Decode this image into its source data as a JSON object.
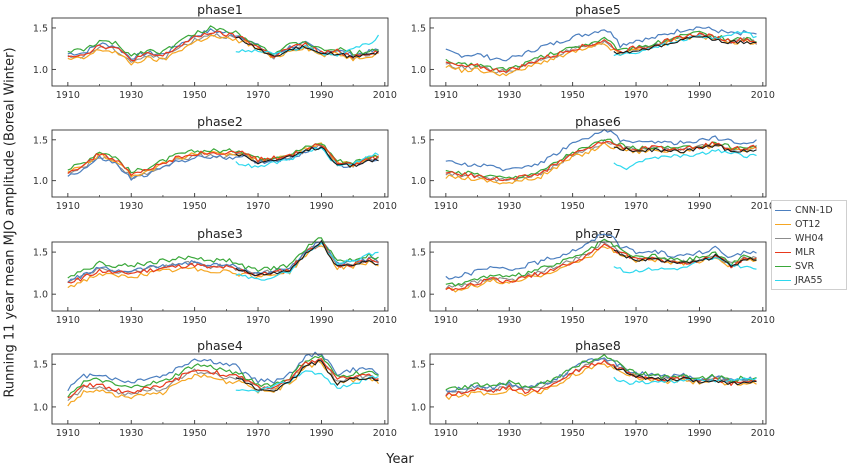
{
  "figure": {
    "ylabel": "Running 11 year mean MJO amplitude (Boreal Winter)",
    "xlabel": "Year"
  },
  "legend": [
    {
      "label": "CNN-1D",
      "color": "#4c7fbf"
    },
    {
      "label": "OT12",
      "color": "#f5a623"
    },
    {
      "label": "WH04",
      "color": "#8c8c8c"
    },
    {
      "label": "MLR",
      "color": "#e8391d"
    },
    {
      "label": "SVR",
      "color": "#3aa83a"
    },
    {
      "label": "JRA55",
      "color": "#2ed8ee"
    }
  ],
  "chart_data": [
    {
      "type": "line",
      "title": "phase1",
      "xlim": [
        1905,
        2011
      ],
      "ylim": [
        0.8,
        1.62
      ],
      "xticks": [
        1910,
        1930,
        1950,
        1970,
        1990,
        2010
      ],
      "yticks": [
        1.0,
        1.5
      ],
      "base": [
        [
          1910,
          1.17
        ],
        [
          1915,
          1.18
        ],
        [
          1920,
          1.29
        ],
        [
          1925,
          1.26
        ],
        [
          1930,
          1.12
        ],
        [
          1935,
          1.18
        ],
        [
          1940,
          1.16
        ],
        [
          1945,
          1.28
        ],
        [
          1950,
          1.38
        ],
        [
          1955,
          1.45
        ],
        [
          1960,
          1.42
        ],
        [
          1965,
          1.38
        ],
        [
          1970,
          1.27
        ],
        [
          1975,
          1.16
        ],
        [
          1980,
          1.26
        ],
        [
          1985,
          1.3
        ],
        [
          1990,
          1.2
        ],
        [
          1995,
          1.22
        ],
        [
          2000,
          1.16
        ],
        [
          2005,
          1.2
        ],
        [
          2008,
          1.22
        ]
      ],
      "offsets": {
        "CNN-1D": 0.02,
        "OT12": -0.05,
        "WH04": -0.02,
        "MLR": 0.0,
        "SVR": 0.05
      },
      "jra": [
        [
          1963,
          1.22
        ],
        [
          1970,
          1.22
        ],
        [
          1975,
          1.19
        ],
        [
          1980,
          1.22
        ],
        [
          1985,
          1.28
        ],
        [
          1990,
          1.19
        ],
        [
          1995,
          1.17
        ],
        [
          2000,
          1.27
        ],
        [
          2005,
          1.3
        ],
        [
          2008,
          1.4
        ]
      ]
    },
    {
      "type": "line",
      "title": "phase2",
      "xlim": [
        1905,
        2011
      ],
      "ylim": [
        0.8,
        1.62
      ],
      "xticks": [
        1910,
        1930,
        1950,
        1970,
        1990,
        2010
      ],
      "yticks": [
        1.0,
        1.5
      ],
      "base": [
        [
          1910,
          1.1
        ],
        [
          1915,
          1.18
        ],
        [
          1920,
          1.32
        ],
        [
          1925,
          1.25
        ],
        [
          1930,
          1.06
        ],
        [
          1935,
          1.12
        ],
        [
          1940,
          1.2
        ],
        [
          1945,
          1.28
        ],
        [
          1950,
          1.32
        ],
        [
          1955,
          1.33
        ],
        [
          1960,
          1.32
        ],
        [
          1965,
          1.34
        ],
        [
          1970,
          1.25
        ],
        [
          1975,
          1.27
        ],
        [
          1980,
          1.3
        ],
        [
          1985,
          1.38
        ],
        [
          1990,
          1.44
        ],
        [
          1995,
          1.22
        ],
        [
          2000,
          1.2
        ],
        [
          2005,
          1.27
        ],
        [
          2008,
          1.28
        ]
      ],
      "offsets": {
        "CNN-1D": -0.04,
        "OT12": 0.0,
        "WH04": -0.02,
        "MLR": 0.01,
        "SVR": 0.04
      },
      "jra": [
        [
          1963,
          1.22
        ],
        [
          1970,
          1.16
        ],
        [
          1975,
          1.22
        ],
        [
          1980,
          1.25
        ],
        [
          1985,
          1.37
        ],
        [
          1990,
          1.39
        ],
        [
          1995,
          1.18
        ],
        [
          2000,
          1.21
        ],
        [
          2005,
          1.31
        ],
        [
          2008,
          1.33
        ]
      ]
    },
    {
      "type": "line",
      "title": "phase3",
      "xlim": [
        1905,
        2011
      ],
      "ylim": [
        0.8,
        1.62
      ],
      "xticks": [
        1910,
        1930,
        1950,
        1970,
        1990,
        2010
      ],
      "yticks": [
        1.0,
        1.5
      ],
      "base": [
        [
          1910,
          1.14
        ],
        [
          1915,
          1.22
        ],
        [
          1920,
          1.3
        ],
        [
          1925,
          1.27
        ],
        [
          1930,
          1.27
        ],
        [
          1935,
          1.3
        ],
        [
          1940,
          1.33
        ],
        [
          1945,
          1.35
        ],
        [
          1950,
          1.37
        ],
        [
          1955,
          1.33
        ],
        [
          1960,
          1.34
        ],
        [
          1965,
          1.29
        ],
        [
          1970,
          1.24
        ],
        [
          1975,
          1.27
        ],
        [
          1980,
          1.3
        ],
        [
          1985,
          1.5
        ],
        [
          1990,
          1.63
        ],
        [
          1995,
          1.35
        ],
        [
          2000,
          1.37
        ],
        [
          2005,
          1.42
        ],
        [
          2008,
          1.38
        ]
      ],
      "offsets": {
        "CNN-1D": 0.01,
        "OT12": -0.06,
        "WH04": 0.0,
        "MLR": -0.02,
        "SVR": 0.07
      },
      "jra": [
        [
          1963,
          1.23
        ],
        [
          1970,
          1.17
        ],
        [
          1975,
          1.21
        ],
        [
          1980,
          1.27
        ],
        [
          1985,
          1.48
        ],
        [
          1990,
          1.6
        ],
        [
          1995,
          1.37
        ],
        [
          2000,
          1.4
        ],
        [
          2005,
          1.47
        ],
        [
          2008,
          1.5
        ]
      ]
    },
    {
      "type": "line",
      "title": "phase4",
      "xlim": [
        1905,
        2011
      ],
      "ylim": [
        0.8,
        1.62
      ],
      "xticks": [
        1910,
        1930,
        1950,
        1970,
        1990,
        2010
      ],
      "yticks": [
        1.0,
        1.5
      ],
      "base": [
        [
          1910,
          1.07
        ],
        [
          1915,
          1.22
        ],
        [
          1920,
          1.25
        ],
        [
          1925,
          1.18
        ],
        [
          1930,
          1.15
        ],
        [
          1935,
          1.2
        ],
        [
          1940,
          1.22
        ],
        [
          1945,
          1.32
        ],
        [
          1950,
          1.42
        ],
        [
          1955,
          1.4
        ],
        [
          1960,
          1.35
        ],
        [
          1965,
          1.33
        ],
        [
          1970,
          1.22
        ],
        [
          1975,
          1.22
        ],
        [
          1980,
          1.3
        ],
        [
          1985,
          1.5
        ],
        [
          1990,
          1.55
        ],
        [
          1995,
          1.3
        ],
        [
          2000,
          1.35
        ],
        [
          2005,
          1.36
        ],
        [
          2008,
          1.32
        ]
      ],
      "offsets": {
        "CNN-1D": 0.14,
        "OT12": -0.05,
        "WH04": 0.0,
        "MLR": 0.02,
        "SVR": 0.07
      },
      "jra": [
        [
          1963,
          1.18
        ],
        [
          1970,
          1.19
        ],
        [
          1975,
          1.24
        ],
        [
          1980,
          1.3
        ],
        [
          1985,
          1.43
        ],
        [
          1990,
          1.38
        ],
        [
          1995,
          1.22
        ],
        [
          2000,
          1.27
        ],
        [
          2005,
          1.34
        ],
        [
          2008,
          1.35
        ]
      ]
    },
    {
      "type": "line",
      "title": "phase5",
      "xlim": [
        1905,
        2011
      ],
      "ylim": [
        0.8,
        1.62
      ],
      "xticks": [
        1910,
        1930,
        1950,
        1970,
        1990,
        2010
      ],
      "yticks": [
        1.0,
        1.5
      ],
      "base": [
        [
          1910,
          1.07
        ],
        [
          1915,
          1.02
        ],
        [
          1920,
          1.03
        ],
        [
          1925,
          0.98
        ],
        [
          1930,
          0.98
        ],
        [
          1935,
          1.04
        ],
        [
          1940,
          1.12
        ],
        [
          1945,
          1.17
        ],
        [
          1950,
          1.24
        ],
        [
          1955,
          1.28
        ],
        [
          1960,
          1.34
        ],
        [
          1965,
          1.2
        ],
        [
          1970,
          1.26
        ],
        [
          1975,
          1.28
        ],
        [
          1980,
          1.34
        ],
        [
          1985,
          1.39
        ],
        [
          1990,
          1.42
        ],
        [
          1995,
          1.38
        ],
        [
          2000,
          1.34
        ],
        [
          2005,
          1.36
        ],
        [
          2008,
          1.32
        ]
      ],
      "offsets": {
        "CNN-1D": 0.15,
        "OT12": -0.03,
        "WH04": 0.0,
        "MLR": 0.01,
        "SVR": 0.03
      },
      "jra": [
        [
          1963,
          1.17
        ],
        [
          1970,
          1.2
        ],
        [
          1975,
          1.27
        ],
        [
          1980,
          1.3
        ],
        [
          1985,
          1.36
        ],
        [
          1990,
          1.4
        ],
        [
          1995,
          1.37
        ],
        [
          2000,
          1.43
        ],
        [
          2005,
          1.45
        ],
        [
          2008,
          1.38
        ]
      ]
    },
    {
      "type": "line",
      "title": "phase6",
      "xlim": [
        1905,
        2011
      ],
      "ylim": [
        0.8,
        1.62
      ],
      "xticks": [
        1910,
        1930,
        1950,
        1970,
        1990,
        2010
      ],
      "yticks": [
        1.0,
        1.5
      ],
      "base": [
        [
          1910,
          1.08
        ],
        [
          1915,
          1.07
        ],
        [
          1920,
          1.05
        ],
        [
          1925,
          1.02
        ],
        [
          1930,
          1.0
        ],
        [
          1935,
          1.04
        ],
        [
          1940,
          1.08
        ],
        [
          1945,
          1.2
        ],
        [
          1950,
          1.32
        ],
        [
          1955,
          1.38
        ],
        [
          1960,
          1.48
        ],
        [
          1965,
          1.42
        ],
        [
          1970,
          1.37
        ],
        [
          1975,
          1.4
        ],
        [
          1980,
          1.38
        ],
        [
          1985,
          1.38
        ],
        [
          1990,
          1.41
        ],
        [
          1995,
          1.45
        ],
        [
          2000,
          1.39
        ],
        [
          2005,
          1.38
        ],
        [
          2008,
          1.41
        ]
      ],
      "offsets": {
        "CNN-1D": 0.14,
        "OT12": -0.03,
        "WH04": 0.0,
        "MLR": 0.01,
        "SVR": 0.03
      },
      "jra": [
        [
          1963,
          1.2
        ],
        [
          1967,
          1.15
        ],
        [
          1970,
          1.22
        ],
        [
          1975,
          1.27
        ],
        [
          1980,
          1.3
        ],
        [
          1985,
          1.3
        ],
        [
          1990,
          1.32
        ],
        [
          1995,
          1.37
        ],
        [
          2000,
          1.34
        ],
        [
          2005,
          1.3
        ],
        [
          2008,
          1.32
        ]
      ]
    },
    {
      "type": "line",
      "title": "phase7",
      "xlim": [
        1905,
        2011
      ],
      "ylim": [
        0.8,
        1.62
      ],
      "xticks": [
        1910,
        1930,
        1950,
        1970,
        1990,
        2010
      ],
      "yticks": [
        1.0,
        1.5
      ],
      "base": [
        [
          1910,
          1.08
        ],
        [
          1915,
          1.1
        ],
        [
          1920,
          1.15
        ],
        [
          1925,
          1.2
        ],
        [
          1930,
          1.16
        ],
        [
          1935,
          1.22
        ],
        [
          1940,
          1.27
        ],
        [
          1945,
          1.33
        ],
        [
          1950,
          1.4
        ],
        [
          1955,
          1.48
        ],
        [
          1960,
          1.62
        ],
        [
          1965,
          1.5
        ],
        [
          1970,
          1.42
        ],
        [
          1975,
          1.44
        ],
        [
          1980,
          1.4
        ],
        [
          1985,
          1.38
        ],
        [
          1990,
          1.42
        ],
        [
          1995,
          1.47
        ],
        [
          2000,
          1.35
        ],
        [
          2005,
          1.44
        ],
        [
          2008,
          1.42
        ]
      ],
      "offsets": {
        "CNN-1D": 0.12,
        "OT12": -0.04,
        "WH04": 0.0,
        "MLR": -0.02,
        "SVR": 0.03
      },
      "jra": [
        [
          1963,
          1.33
        ],
        [
          1967,
          1.26
        ],
        [
          1970,
          1.28
        ],
        [
          1975,
          1.3
        ],
        [
          1980,
          1.3
        ],
        [
          1985,
          1.31
        ],
        [
          1990,
          1.39
        ],
        [
          1995,
          1.43
        ],
        [
          2000,
          1.35
        ],
        [
          2005,
          1.32
        ],
        [
          2008,
          1.3
        ]
      ]
    },
    {
      "type": "line",
      "title": "phase8",
      "xlim": [
        1905,
        2011
      ],
      "ylim": [
        0.8,
        1.62
      ],
      "xticks": [
        1910,
        1930,
        1950,
        1970,
        1990,
        2010
      ],
      "yticks": [
        1.0,
        1.5
      ],
      "base": [
        [
          1910,
          1.16
        ],
        [
          1915,
          1.18
        ],
        [
          1920,
          1.22
        ],
        [
          1925,
          1.2
        ],
        [
          1930,
          1.25
        ],
        [
          1935,
          1.2
        ],
        [
          1940,
          1.23
        ],
        [
          1945,
          1.3
        ],
        [
          1950,
          1.42
        ],
        [
          1955,
          1.5
        ],
        [
          1960,
          1.55
        ],
        [
          1965,
          1.46
        ],
        [
          1970,
          1.38
        ],
        [
          1975,
          1.35
        ],
        [
          1980,
          1.33
        ],
        [
          1985,
          1.35
        ],
        [
          1990,
          1.31
        ],
        [
          1995,
          1.34
        ],
        [
          2000,
          1.29
        ],
        [
          2005,
          1.32
        ],
        [
          2008,
          1.3
        ]
      ],
      "offsets": {
        "CNN-1D": 0.03,
        "OT12": -0.05,
        "WH04": 0.0,
        "MLR": -0.02,
        "SVR": 0.04
      },
      "jra": [
        [
          1963,
          1.33
        ],
        [
          1967,
          1.28
        ],
        [
          1970,
          1.29
        ],
        [
          1975,
          1.29
        ],
        [
          1980,
          1.3
        ],
        [
          1985,
          1.3
        ],
        [
          1990,
          1.31
        ],
        [
          1995,
          1.31
        ],
        [
          2000,
          1.31
        ],
        [
          2005,
          1.33
        ],
        [
          2008,
          1.33
        ]
      ]
    }
  ]
}
